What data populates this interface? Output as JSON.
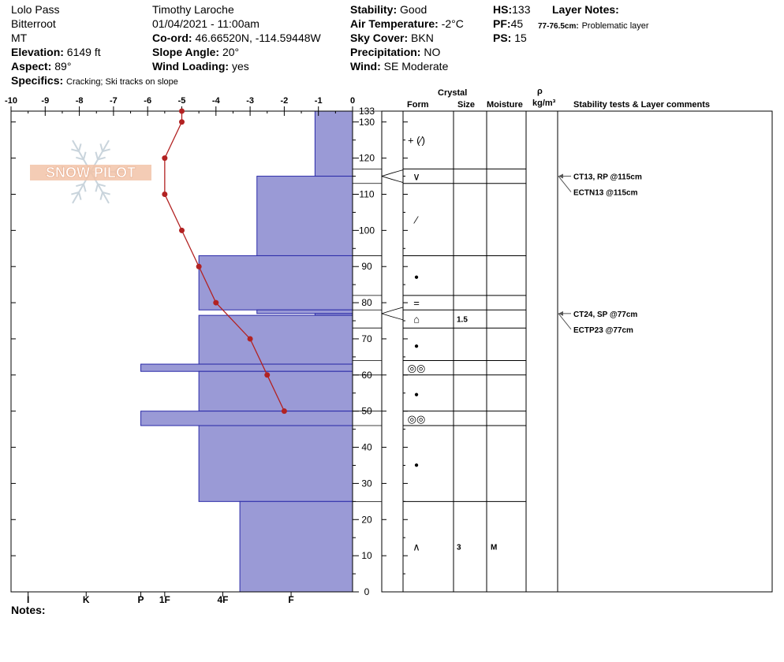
{
  "header": {
    "location": "Lolo Pass",
    "range": "Bitterroot",
    "state": "MT",
    "elevation_label": "Elevation:",
    "elevation": "6149 ft",
    "aspect_label": "Aspect:",
    "aspect": "89°",
    "specifics_label": "Specifics:",
    "specifics": "Cracking;  Ski tracks on slope",
    "observer": "Timothy  Laroche",
    "datetime": "01/04/2021 - 11:00am",
    "coord_label": "Co-ord:",
    "coord": "46.66520N, -114.59448W",
    "slope_label": "Slope Angle:",
    "slope": "20°",
    "wind_loading_label": "Wind Loading:",
    "wind_loading": "yes",
    "stability_label": "Stability:",
    "stability": "Good",
    "air_temp_label": "Air Temperature:",
    "air_temp": "-2°C",
    "sky_label": "Sky Cover:",
    "sky": "BKN",
    "precip_label": "Precipitation:",
    "precip": "NO",
    "wind_label": "Wind:",
    "wind": "SE Moderate",
    "hs_label": "HS:",
    "hs": "133",
    "pf_label": "PF:",
    "pf": "45",
    "ps_label": "PS:",
    "ps": "15",
    "layer_notes_label": "Layer Notes:",
    "layer_note_range": "77-76.5cm:",
    "layer_note_text": "Problematic layer",
    "notes_label": "Notes:"
  },
  "watermark": {
    "text": "SNOW PILOT"
  },
  "colors": {
    "hardness_fill": "#9a9ad6",
    "hardness_stroke": "#2a2aa8",
    "temp_line": "#b22222",
    "watermark": "#f2c3a8"
  },
  "table_headers": {
    "crystal": "Crystal",
    "form": "Form",
    "size": "Size",
    "moisture": "Moisture",
    "rho": "ρ",
    "density_unit": "kg/m³",
    "comments": "Stability tests & Layer comments"
  },
  "chart_data": {
    "type": "snow_profile",
    "temp_axis": {
      "ticks": [
        -10,
        -9,
        -8,
        -7,
        -6,
        -5,
        -4,
        -3,
        -2,
        -1,
        0
      ],
      "range": [
        -10,
        0
      ]
    },
    "height_axis": {
      "ticks": [
        0,
        10,
        20,
        30,
        40,
        50,
        60,
        70,
        80,
        90,
        100,
        110,
        120,
        130
      ],
      "top_label": 133,
      "range": [
        0,
        133
      ]
    },
    "hardness_axis": {
      "labels": [
        "I",
        "K",
        "P",
        "1F",
        "4F",
        "F"
      ]
    },
    "temperature_profile": [
      {
        "height": 133,
        "temp": -5
      },
      {
        "height": 130,
        "temp": -5
      },
      {
        "height": 120,
        "temp": -5.5
      },
      {
        "height": 110,
        "temp": -5.5
      },
      {
        "height": 100,
        "temp": -5
      },
      {
        "height": 90,
        "temp": -4.5
      },
      {
        "height": 80,
        "temp": -4
      },
      {
        "height": 70,
        "temp": -3
      },
      {
        "height": 60,
        "temp": -2.5
      },
      {
        "height": 50,
        "temp": -2
      }
    ],
    "hardness_layers": [
      {
        "top": 133,
        "bottom": 115,
        "hardness": 1.1
      },
      {
        "top": 115,
        "bottom": 93,
        "hardness": 2.8
      },
      {
        "top": 93,
        "bottom": 78,
        "hardness": 4.5
      },
      {
        "top": 78,
        "bottom": 77,
        "hardness": 2.8
      },
      {
        "top": 77,
        "bottom": 76.5,
        "hardness": 1.1
      },
      {
        "top": 76.5,
        "bottom": 63,
        "hardness": 4.5
      },
      {
        "top": 63,
        "bottom": 61,
        "hardness": 6.2
      },
      {
        "top": 61,
        "bottom": 50,
        "hardness": 4.5
      },
      {
        "top": 50,
        "bottom": 46,
        "hardness": 6.2
      },
      {
        "top": 46,
        "bottom": 25,
        "hardness": 4.5
      },
      {
        "top": 25,
        "bottom": 0,
        "hardness": 3.3
      }
    ],
    "layers": [
      {
        "top": 133,
        "bottom": 117,
        "form": "+ (⁄)",
        "size": "",
        "moisture": ""
      },
      {
        "top": 117,
        "bottom": 113,
        "form": "∨",
        "size": "",
        "moisture": ""
      },
      {
        "top": 113,
        "bottom": 93,
        "form": "⁄",
        "size": "",
        "moisture": ""
      },
      {
        "top": 93,
        "bottom": 82,
        "form": "●",
        "size": "",
        "moisture": ""
      },
      {
        "top": 82,
        "bottom": 78,
        "form": "=",
        "size": "",
        "moisture": ""
      },
      {
        "top": 78,
        "bottom": 73,
        "form": "⌂",
        "size": "1.5",
        "moisture": ""
      },
      {
        "top": 73,
        "bottom": 64,
        "form": "●",
        "size": "",
        "moisture": ""
      },
      {
        "top": 64,
        "bottom": 60,
        "form": "◎◎",
        "size": "",
        "moisture": ""
      },
      {
        "top": 60,
        "bottom": 50,
        "form": "●",
        "size": "",
        "moisture": ""
      },
      {
        "top": 50,
        "bottom": 46,
        "form": "◎◎",
        "size": "",
        "moisture": ""
      },
      {
        "top": 46,
        "bottom": 25,
        "form": "●",
        "size": "",
        "moisture": ""
      },
      {
        "top": 25,
        "bottom": 0,
        "form": "∧",
        "size": "3",
        "moisture": "M"
      }
    ],
    "stability_tests": [
      {
        "depth": 115,
        "lines": [
          "CT13, RP @115cm",
          "ECTN13 @115cm"
        ]
      },
      {
        "depth": 77,
        "lines": [
          "CT24, SP @77cm",
          "ECTP23 @77cm"
        ]
      }
    ]
  }
}
